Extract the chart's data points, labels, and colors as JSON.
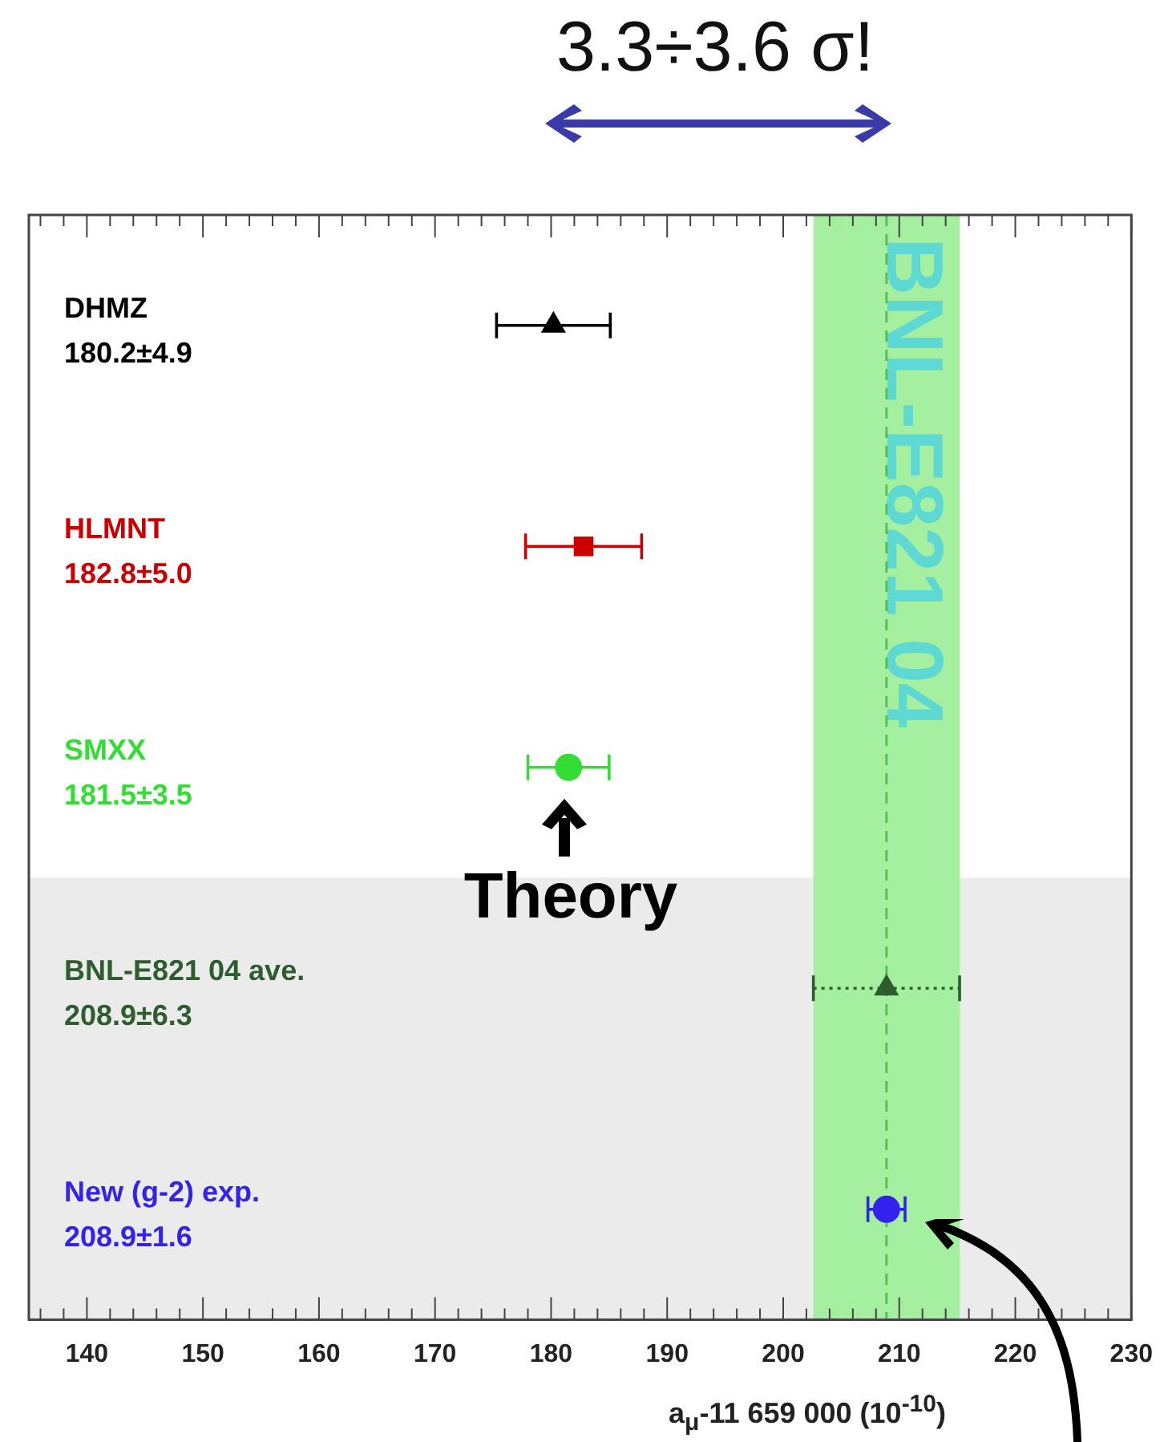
{
  "chart_data": {
    "type": "scatter",
    "orientation": "horizontal",
    "title": "3.3÷3.6 σ!",
    "xlabel": "a$_{μ}$-11 659 000 (10$^{-10}$)",
    "categories": [
      "DHMZ\n180.2±4.9",
      "HLMNT\n182.8±5.0",
      "SMXX\n181.5±3.5",
      "BNL-E821 04 ave.\n208.9±6.3",
      "New (g-2) exp.\n208.9±1.6"
    ],
    "series": [
      {
        "color": "#000000",
        "marker": "triangle",
        "values": [
          180.2,
          null,
          null,
          null,
          null
        ],
        "errors": [
          4.9,
          null,
          null,
          null,
          null
        ]
      },
      {
        "color": "#cc0000",
        "marker": "square",
        "values": [
          null,
          182.8,
          null,
          null,
          null
        ],
        "errors": [
          null,
          5.0,
          null,
          null,
          null
        ]
      },
      {
        "color": "#33dd33",
        "marker": "circle",
        "values": [
          null,
          null,
          181.5,
          null,
          null
        ],
        "errors": [
          null,
          null,
          3.5,
          null,
          null
        ]
      },
      {
        "color": "#2e5e2e",
        "marker": "triangle",
        "line_style": "dotted",
        "values": [
          null,
          null,
          null,
          208.9,
          null
        ],
        "errors": [
          null,
          null,
          null,
          6.3,
          null
        ]
      },
      {
        "color": "#3322ee",
        "marker": "circle",
        "values": [
          null,
          null,
          null,
          null,
          208.9
        ],
        "errors": [
          null,
          null,
          null,
          null,
          1.6
        ]
      }
    ],
    "xlim": [
      135,
      230
    ],
    "xticks": [
      {
        "value": 136,
        "label": null
      },
      {
        "value": 138,
        "label": null
      },
      140,
      {
        "value": 142,
        "label": null
      },
      {
        "value": 144,
        "label": null
      },
      {
        "value": 146,
        "label": null
      },
      {
        "value": 148,
        "label": null
      },
      150,
      {
        "value": 152,
        "label": null
      },
      {
        "value": 154,
        "label": null
      },
      {
        "value": 156,
        "label": null
      },
      {
        "value": 158,
        "label": null
      },
      160,
      {
        "value": 162,
        "label": null
      },
      {
        "value": 164,
        "label": null
      },
      {
        "value": 166,
        "label": null
      },
      {
        "value": 168,
        "label": null
      },
      170,
      {
        "value": 172,
        "label": null
      },
      {
        "value": 174,
        "label": null
      },
      {
        "value": 176,
        "label": null
      },
      {
        "value": 178,
        "label": null
      },
      180,
      {
        "value": 182,
        "label": null
      },
      {
        "value": 184,
        "label": null
      },
      {
        "value": 186,
        "label": null
      },
      {
        "value": 188,
        "label": null
      },
      190,
      {
        "value": 192,
        "label": null
      },
      {
        "value": 194,
        "label": null
      },
      {
        "value": 196,
        "label": null
      },
      {
        "value": 198,
        "label": null
      },
      200,
      {
        "value": 202,
        "label": null
      },
      {
        "value": 204,
        "label": null
      },
      {
        "value": 206,
        "label": null
      },
      {
        "value": 208,
        "label": null
      },
      210,
      {
        "value": 212,
        "label": null
      },
      {
        "value": 214,
        "label": null
      },
      {
        "value": 216,
        "label": null
      },
      {
        "value": 218,
        "label": null
      },
      220,
      {
        "value": 222,
        "label": null
      },
      {
        "value": 224,
        "label": null
      },
      {
        "value": 226,
        "label": null
      },
      {
        "value": 228,
        "label": null
      },
      230
    ],
    "bands": [
      {
        "axis": "y",
        "from": "BNL-E821 04 ave.\n208.9±6.3",
        "to": "New (g-2) exp.\n208.9±1.6",
        "color": "#ebebeb"
      },
      {
        "axis": "x",
        "from": 202.6,
        "to": 215.2,
        "label": "BNL-E821 04",
        "color": "#a4f0a0"
      }
    ],
    "ref_lines": [
      {
        "axis": "x",
        "value": 208.9,
        "color": "#55bb55",
        "line_style": "dashed"
      }
    ],
    "annotations": [
      "Theory"
    ]
  }
}
